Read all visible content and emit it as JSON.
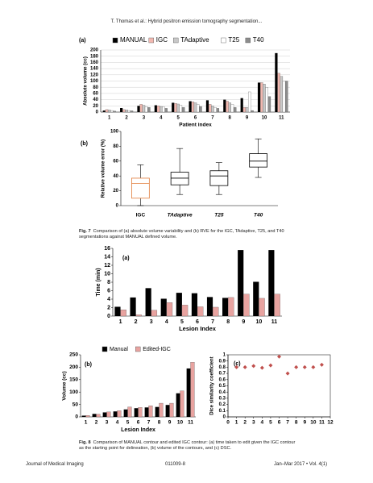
{
  "header": "T. Thomas et al.: Hybrid positron emission tomography segmentation...",
  "chart_data": [
    {
      "type": "bar",
      "panel": "(a)",
      "ylabel": "Absolute volume (cc)",
      "xlabel": "Patient index",
      "categories": [
        "1",
        "2",
        "3",
        "4",
        "5",
        "6",
        "7",
        "8",
        "9",
        "10",
        "11"
      ],
      "series": [
        {
          "name": "MANUAL",
          "color": "#000000",
          "values": [
            5,
            13,
            20,
            22,
            30,
            35,
            38,
            40,
            45,
            95,
            190
          ]
        },
        {
          "name": "IGC",
          "color": "#f2b8b0",
          "values": [
            8,
            8,
            25,
            20,
            28,
            33,
            25,
            35,
            15,
            95,
            125
          ]
        },
        {
          "name": "TAdaptive",
          "color": "#c8c8c8",
          "values": [
            7,
            7,
            22,
            18,
            26,
            30,
            20,
            30,
            15,
            90,
            115
          ]
        },
        {
          "name": "T25",
          "color": "#ffffff",
          "values": [
            5,
            5,
            18,
            16,
            22,
            25,
            15,
            25,
            65,
            80,
            100
          ]
        },
        {
          "name": "T40",
          "color": "#8c8c8c",
          "values": [
            3,
            4,
            15,
            12,
            15,
            18,
            12,
            15,
            5,
            50,
            100
          ]
        }
      ],
      "ylim": [
        0,
        200
      ],
      "yticks": [
        0,
        20,
        40,
        60,
        80,
        100,
        120,
        140,
        160,
        180,
        200
      ],
      "grid": true,
      "legend": "top"
    },
    {
      "type": "box",
      "panel": "(b)",
      "ylabel": "Relative volume error (%)",
      "categories": [
        "IGC",
        "TAdaptive",
        "T25",
        "T40"
      ],
      "colors": [
        "#e07b39",
        "#000000",
        "#000000",
        "#000000"
      ],
      "boxes": [
        {
          "min": 0,
          "q1": 10,
          "median": 30,
          "q3": 37,
          "max": 55
        },
        {
          "min": 15,
          "q1": 28,
          "median": 37,
          "q3": 45,
          "max": 77
        },
        {
          "min": 15,
          "q1": 27,
          "median": 40,
          "q3": 47,
          "max": 58
        },
        {
          "min": 38,
          "q1": 52,
          "median": 60,
          "q3": 70,
          "max": 90
        }
      ],
      "ylim": [
        0,
        100
      ],
      "yticks": [
        0,
        20,
        40,
        60,
        80,
        100
      ]
    },
    {
      "type": "bar",
      "panel": "(a)",
      "ylabel": "Time (min)",
      "xlabel": "Lesion Index",
      "categories": [
        "1",
        "2",
        "3",
        "4",
        "5",
        "6",
        "7",
        "8",
        "9",
        "10",
        "11"
      ],
      "series": [
        {
          "color": "#000000",
          "values": [
            2.2,
            4.4,
            6.6,
            4.1,
            5.5,
            5.4,
            4.5,
            4.3,
            15.6,
            8.1,
            15.6
          ]
        },
        {
          "color": "#e8a3a0",
          "values": [
            1.5,
            0.3,
            1.4,
            3.2,
            2.6,
            2.2,
            2.1,
            4.4,
            5.2,
            4.2,
            5.2
          ]
        }
      ],
      "ylim": [
        0,
        16
      ],
      "yticks": [
        0,
        2,
        4,
        6,
        8,
        10,
        12,
        14,
        16
      ]
    },
    {
      "type": "bar",
      "panel": "(b)",
      "ylabel": "Volume (cc)",
      "xlabel": "Lesion Index",
      "categories": [
        "1",
        "2",
        "3",
        "4",
        "5",
        "6",
        "7",
        "8",
        "9",
        "10",
        "11"
      ],
      "series": [
        {
          "name": "Manual",
          "color": "#000000",
          "values": [
            5,
            12,
            18,
            22,
            30,
            35,
            38,
            40,
            48,
            95,
            195
          ]
        },
        {
          "name": "Edited-IGC",
          "color": "#e8a3a0",
          "values": [
            6,
            11,
            20,
            25,
            40,
            38,
            45,
            55,
            55,
            105,
            220
          ]
        }
      ],
      "ylim": [
        0,
        250
      ],
      "yticks": [
        0,
        50,
        100,
        150,
        200,
        250
      ],
      "legend": "top"
    },
    {
      "type": "scatter",
      "panel": "(c)",
      "ylabel": "Dice similarity coefficient",
      "color": "#c0504d",
      "x": [
        1,
        2,
        3,
        4,
        5,
        6,
        7,
        8,
        9,
        10,
        11
      ],
      "values": [
        0.8,
        0.8,
        0.82,
        0.79,
        0.83,
        0.97,
        0.7,
        0.8,
        0.8,
        0.8,
        0.84
      ],
      "xlim": [
        0,
        12
      ],
      "xticks": [
        0,
        1,
        2,
        3,
        4,
        5,
        6,
        7,
        8,
        9,
        10,
        11,
        12
      ],
      "ylim": [
        0,
        1
      ],
      "yticks": [
        0,
        0.1,
        0.2,
        0.3,
        0.4,
        0.5,
        0.6,
        0.7,
        0.8,
        0.9,
        1
      ]
    }
  ],
  "captions": [
    {
      "label": "Fig. 7",
      "text": "Comparison of (a) absolute volume variability and (b) RVE for the IGC, TAdaptive, T25, and T40 segmentations against MANUAL defined volume."
    },
    {
      "label": "Fig. 8",
      "text": "Comparison of MANUAL contour and edited IGC contour: (a) time taken to edit given the IGC contour as the starting point for delineation, (b) volume of the contours, and (c) DSC."
    }
  ],
  "footer": {
    "journal": "Journal of Medical Imaging",
    "page": "011009-8",
    "issue": "Jan–Mar 2017 • Vol. 4(1)"
  }
}
